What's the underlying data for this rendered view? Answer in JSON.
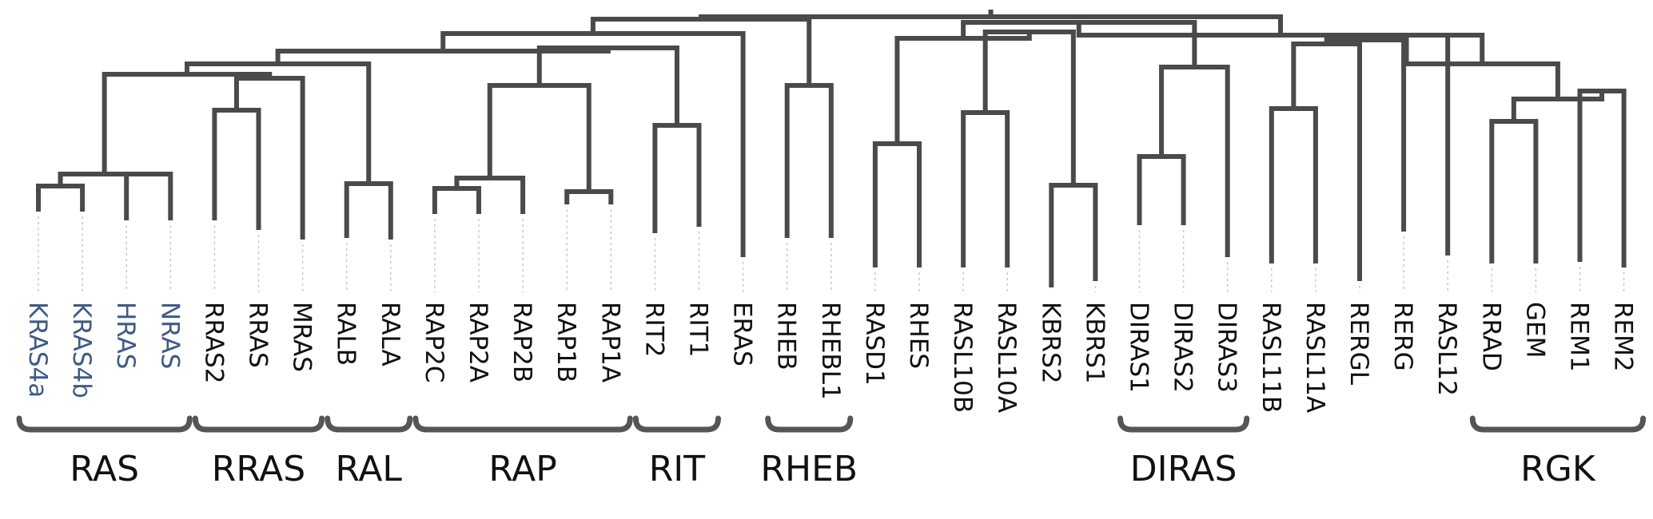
{
  "colors": {
    "branch": "#4a4a4a",
    "ras_highlight": "#3f5b86",
    "label": "#111111",
    "bracket": "#555555"
  },
  "leaves": [
    {
      "id": "l1",
      "name": "KRAS4a",
      "highlight": true
    },
    {
      "id": "l2",
      "name": "KRAS4b",
      "highlight": true
    },
    {
      "id": "l3",
      "name": "HRAS",
      "highlight": true
    },
    {
      "id": "l4",
      "name": "NRAS",
      "highlight": true
    },
    {
      "id": "l5",
      "name": "RRAS2"
    },
    {
      "id": "l6",
      "name": "RRAS"
    },
    {
      "id": "l7",
      "name": "MRAS"
    },
    {
      "id": "l8",
      "name": "RALB"
    },
    {
      "id": "l9",
      "name": "RALA"
    },
    {
      "id": "l10",
      "name": "RAP2C"
    },
    {
      "id": "l11",
      "name": "RAP2A"
    },
    {
      "id": "l12",
      "name": "RAP2B"
    },
    {
      "id": "l13",
      "name": "RAP1B"
    },
    {
      "id": "l14",
      "name": "RAP1A"
    },
    {
      "id": "l15",
      "name": "RIT2"
    },
    {
      "id": "l16",
      "name": "RIT1"
    },
    {
      "id": "l17",
      "name": "ERAS"
    },
    {
      "id": "l18",
      "name": "RHEB"
    },
    {
      "id": "l19",
      "name": "RHEBL1"
    },
    {
      "id": "l20",
      "name": "RASD1"
    },
    {
      "id": "l21",
      "name": "RHES"
    },
    {
      "id": "l22",
      "name": "RASL10B"
    },
    {
      "id": "l23",
      "name": "RASL10A"
    },
    {
      "id": "l24",
      "name": "KBRS2"
    },
    {
      "id": "l25",
      "name": "KBRS1"
    },
    {
      "id": "l26",
      "name": "DIRAS1"
    },
    {
      "id": "l27",
      "name": "DIRAS2"
    },
    {
      "id": "l28",
      "name": "DIRAS3"
    },
    {
      "id": "l29",
      "name": "RASL11B"
    },
    {
      "id": "l30",
      "name": "RASL11A"
    },
    {
      "id": "l31",
      "name": "RERGL"
    },
    {
      "id": "l32",
      "name": "RERG"
    },
    {
      "id": "l33",
      "name": "RASL12"
    },
    {
      "id": "l34",
      "name": "RRAD"
    },
    {
      "id": "l35",
      "name": "GEM"
    },
    {
      "id": "l36",
      "name": "REM1"
    },
    {
      "id": "l37",
      "name": "REM2"
    }
  ],
  "groups": [
    {
      "id": "g-ras",
      "label": "RAS",
      "from": "l1",
      "to": "l4"
    },
    {
      "id": "g-rras",
      "label": "RRAS",
      "from": "l5",
      "to": "l7"
    },
    {
      "id": "g-ral",
      "label": "RAL",
      "from": "l8",
      "to": "l9"
    },
    {
      "id": "g-rap",
      "label": "RAP",
      "from": "l10",
      "to": "l14"
    },
    {
      "id": "g-rit",
      "label": "RIT",
      "from": "l15",
      "to": "l16"
    },
    {
      "id": "g-rheb",
      "label": "RHEB",
      "from": "l18",
      "to": "l19"
    },
    {
      "id": "g-diras",
      "label": "DIRAS",
      "from": "l26",
      "to": "l28"
    },
    {
      "id": "g-rgk",
      "label": "RGK",
      "from": "l34",
      "to": "l37"
    }
  ]
}
